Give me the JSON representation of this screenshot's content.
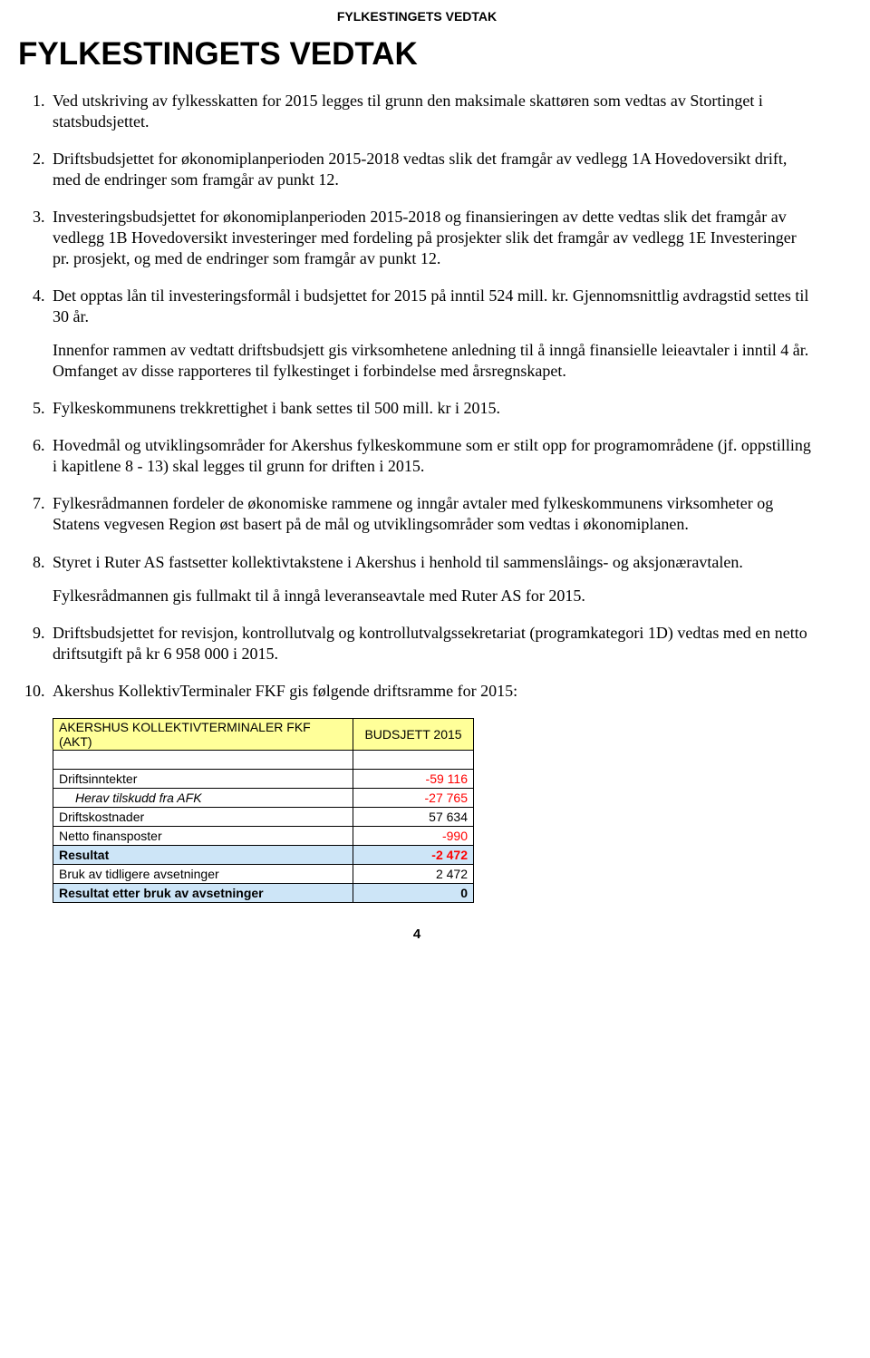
{
  "header": "FYLKESTINGETS VEDTAK",
  "title": "FYLKESTINGETS VEDTAK",
  "items": [
    {
      "paras": [
        "Ved utskriving av fylkesskatten for 2015 legges til grunn den maksimale skattøren som vedtas av Stortinget i statsbudsjettet."
      ]
    },
    {
      "paras": [
        "Driftsbudsjettet for økonomiplanperioden 2015-2018 vedtas slik det framgår av vedlegg 1A Hovedoversikt drift, med de endringer som framgår av punkt 12."
      ]
    },
    {
      "paras": [
        "Investeringsbudsjettet for økonomiplanperioden 2015-2018 og finansieringen av dette vedtas slik det framgår av vedlegg 1B Hovedoversikt investeringer med fordeling på prosjekter slik det framgår av vedlegg 1E Investeringer pr. prosjekt, og med de endringer som framgår av punkt 12."
      ]
    },
    {
      "paras": [
        "Det opptas lån til investeringsformål i budsjettet for 2015 på inntil 524 mill. kr. Gjennomsnittlig avdragstid settes til 30 år.",
        "Innenfor rammen av vedtatt driftsbudsjett gis virksomhetene anledning til å inngå finansielle leieavtaler i inntil 4 år. Omfanget av disse rapporteres til fylkestinget i forbindelse med årsregnskapet."
      ]
    },
    {
      "paras": [
        "Fylkeskommunens trekkrettighet i bank settes til 500 mill. kr i 2015."
      ]
    },
    {
      "paras": [
        "Hovedmål og utviklingsområder for Akershus fylkeskommune som er stilt opp for programområdene (jf. oppstilling i kapitlene 8 - 13) skal legges til grunn for driften i 2015."
      ]
    },
    {
      "paras": [
        "Fylkesrådmannen fordeler de økonomiske rammene og inngår avtaler med fylkeskommunens virksomheter og Statens vegvesen Region øst basert på de mål og utviklingsområder som vedtas i økonomiplanen."
      ]
    },
    {
      "paras": [
        "Styret i Ruter AS fastsetter kollektivtakstene i Akershus i henhold til sammenslåings- og aksjonæravtalen.",
        "Fylkesrådmannen gis fullmakt til å inngå leveranseavtale med Ruter AS for 2015."
      ]
    },
    {
      "paras": [
        "Driftsbudsjettet for revisjon, kontrollutvalg og kontrollutvalgssekretariat (programkategori 1D) vedtas med en netto driftsutgift på kr 6 958 000 i 2015."
      ]
    },
    {
      "paras": [
        "Akershus KollektivTerminaler FKF gis følgende driftsramme for 2015:"
      ]
    }
  ],
  "table": {
    "header": {
      "label": "AKERSHUS KOLLEKTIVTERMINALER FKF (AKT)",
      "value": "BUDSJETT 2015"
    },
    "rows": [
      {
        "label": "Driftsinntekter",
        "value": "-59 116",
        "neg": true
      },
      {
        "label": "Herav tilskudd fra AFK",
        "value": "-27 765",
        "neg": true,
        "indent": true
      },
      {
        "label": "Driftskostnader",
        "value": "57 634",
        "neg": false
      },
      {
        "label": "Netto finansposter",
        "value": "-990",
        "neg": true
      },
      {
        "label": "Resultat",
        "value": "-2 472",
        "neg": true,
        "highlight": true
      },
      {
        "label": "Bruk av tidligere avsetninger",
        "value": "2 472",
        "neg": false
      },
      {
        "label": "Resultat etter bruk av avsetninger",
        "value": "0",
        "neg": false,
        "highlight": true
      }
    ]
  },
  "page_number": "4"
}
